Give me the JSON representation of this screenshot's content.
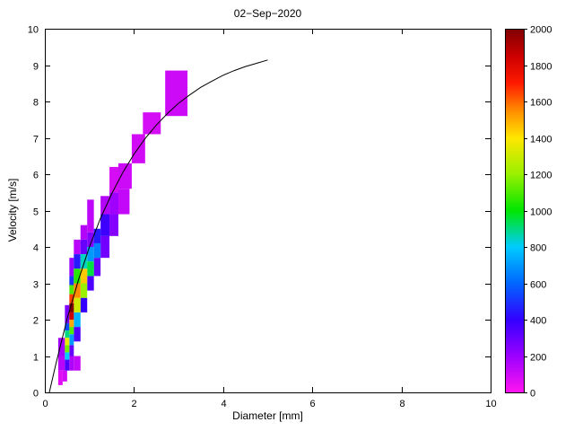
{
  "chart_data": {
    "type": "heatmap",
    "title": "02−Sep−2020",
    "xlabel": "Diameter [mm]",
    "ylabel": "Velocity [m/s]",
    "xlim": [
      0,
      10
    ],
    "ylim": [
      0,
      10
    ],
    "x_ticks": [
      0,
      2,
      4,
      6,
      8,
      10
    ],
    "y_ticks": [
      0,
      1,
      2,
      3,
      4,
      5,
      6,
      7,
      8,
      9,
      10
    ],
    "grid": false,
    "legend": "none",
    "colorbar": {
      "min": 0,
      "max": 2000,
      "position": "right",
      "ticks": [
        0,
        200,
        400,
        600,
        800,
        1000,
        1200,
        1400,
        1600,
        1800,
        2000
      ],
      "stops": [
        [
          0,
          "#ff14f0"
        ],
        [
          200,
          "#9b00ff"
        ],
        [
          400,
          "#3300ff"
        ],
        [
          600,
          "#0066ff"
        ],
        [
          800,
          "#00ccff"
        ],
        [
          1000,
          "#00e600"
        ],
        [
          1200,
          "#99f000"
        ],
        [
          1400,
          "#ffe600"
        ],
        [
          1550,
          "#ff8c00"
        ],
        [
          1700,
          "#ff1a00"
        ],
        [
          1850,
          "#cc0000"
        ],
        [
          2000,
          "#800000"
        ]
      ]
    },
    "cells": {
      "format": [
        "d_min_mm",
        "d_max_mm",
        "v_min_ms",
        "v_max_ms",
        "count"
      ],
      "values": [
        [
          0.3,
          0.4,
          0.2,
          0.6,
          60
        ],
        [
          0.4,
          0.5,
          0.3,
          0.6,
          90
        ],
        [
          0.3,
          0.45,
          0.6,
          1.0,
          140
        ],
        [
          0.3,
          0.45,
          1.0,
          1.5,
          180
        ],
        [
          0.55,
          0.65,
          0.6,
          1.0,
          160
        ],
        [
          0.65,
          0.8,
          0.6,
          1.0,
          120
        ],
        [
          0.45,
          0.55,
          0.6,
          0.9,
          350
        ],
        [
          0.45,
          0.55,
          0.9,
          1.1,
          800
        ],
        [
          0.45,
          0.55,
          1.1,
          1.3,
          1150
        ],
        [
          0.45,
          0.55,
          1.3,
          1.5,
          1350
        ],
        [
          0.45,
          0.55,
          1.5,
          1.7,
          900
        ],
        [
          0.45,
          0.55,
          1.7,
          1.9,
          550
        ],
        [
          0.45,
          0.55,
          1.9,
          2.4,
          260
        ],
        [
          0.55,
          0.65,
          1.0,
          1.3,
          300
        ],
        [
          0.55,
          0.65,
          1.3,
          1.6,
          700
        ],
        [
          0.55,
          0.65,
          1.6,
          1.8,
          1100
        ],
        [
          0.55,
          0.65,
          1.8,
          2.0,
          1500
        ],
        [
          0.55,
          0.65,
          2.0,
          2.2,
          1850
        ],
        [
          0.55,
          0.65,
          2.2,
          2.45,
          2000
        ],
        [
          0.55,
          0.65,
          2.45,
          2.7,
          1650
        ],
        [
          0.55,
          0.65,
          2.7,
          2.95,
          1100
        ],
        [
          0.55,
          0.65,
          2.95,
          3.2,
          500
        ],
        [
          0.55,
          0.65,
          3.2,
          3.7,
          200
        ],
        [
          0.65,
          0.8,
          1.4,
          1.8,
          350
        ],
        [
          0.65,
          0.8,
          1.8,
          2.2,
          750
        ],
        [
          0.65,
          0.8,
          2.2,
          2.6,
          1300
        ],
        [
          0.65,
          0.8,
          2.6,
          3.0,
          1550
        ],
        [
          0.65,
          0.8,
          3.0,
          3.4,
          1050
        ],
        [
          0.65,
          0.8,
          3.4,
          3.8,
          450
        ],
        [
          0.65,
          0.8,
          3.8,
          4.2,
          140
        ],
        [
          0.8,
          0.95,
          2.2,
          2.6,
          400
        ],
        [
          0.8,
          0.95,
          2.6,
          3.0,
          1200
        ],
        [
          0.8,
          0.95,
          3.0,
          3.4,
          1450
        ],
        [
          0.8,
          0.95,
          3.4,
          3.8,
          850
        ],
        [
          0.8,
          0.95,
          3.8,
          4.2,
          300
        ],
        [
          0.8,
          0.95,
          4.2,
          4.6,
          150
        ],
        [
          0.95,
          1.1,
          2.8,
          3.2,
          350
        ],
        [
          0.95,
          1.1,
          3.2,
          3.6,
          950
        ],
        [
          0.95,
          1.1,
          3.6,
          4.0,
          700
        ],
        [
          0.95,
          1.1,
          4.0,
          4.4,
          250
        ],
        [
          0.95,
          1.1,
          4.4,
          5.3,
          130
        ],
        [
          1.1,
          1.25,
          3.2,
          3.7,
          300
        ],
        [
          1.1,
          1.25,
          3.7,
          4.1,
          650
        ],
        [
          1.1,
          1.25,
          4.1,
          4.5,
          450
        ],
        [
          1.25,
          1.45,
          3.7,
          4.3,
          280
        ],
        [
          1.25,
          1.45,
          4.3,
          4.9,
          380
        ],
        [
          1.25,
          1.45,
          4.9,
          5.4,
          150
        ],
        [
          1.45,
          1.65,
          4.3,
          4.9,
          240
        ],
        [
          1.45,
          1.65,
          4.9,
          5.5,
          190
        ],
        [
          1.45,
          1.65,
          5.5,
          6.2,
          80
        ],
        [
          1.65,
          1.9,
          4.9,
          5.6,
          120
        ],
        [
          1.65,
          1.95,
          5.6,
          6.3,
          100
        ],
        [
          1.95,
          2.25,
          6.3,
          7.1,
          90
        ],
        [
          2.2,
          2.6,
          7.1,
          7.7,
          85
        ],
        [
          2.7,
          3.2,
          7.6,
          8.85,
          100
        ]
      ]
    },
    "curve": {
      "name": "terminal-velocity-fit",
      "color": "#000000",
      "points": [
        [
          0.1,
          0.0
        ],
        [
          0.25,
          0.79
        ],
        [
          0.5,
          2.02
        ],
        [
          0.75,
          3.08
        ],
        [
          1.0,
          4.0
        ],
        [
          1.25,
          4.79
        ],
        [
          1.5,
          5.46
        ],
        [
          1.75,
          6.05
        ],
        [
          2.0,
          6.55
        ],
        [
          2.25,
          6.98
        ],
        [
          2.5,
          7.35
        ],
        [
          2.75,
          7.67
        ],
        [
          3.0,
          7.95
        ],
        [
          3.25,
          8.18
        ],
        [
          3.5,
          8.39
        ],
        [
          3.75,
          8.56
        ],
        [
          4.0,
          8.72
        ],
        [
          4.25,
          8.85
        ],
        [
          4.5,
          8.96
        ],
        [
          4.75,
          9.05
        ],
        [
          5.0,
          9.14
        ]
      ]
    }
  }
}
